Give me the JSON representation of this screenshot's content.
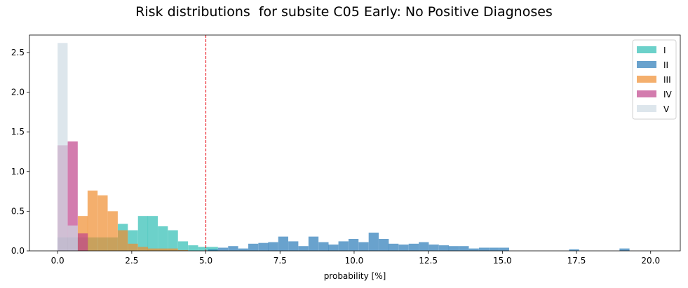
{
  "chart_data": {
    "type": "histogram",
    "title": "Risk distributions  for subsite C05 Early: No Positive Diagnoses",
    "xlabel": "probability [%]",
    "ylabel": "",
    "xlim": [
      -0.95,
      21.0
    ],
    "ylim": [
      0,
      2.72
    ],
    "xticks": [
      "0.0",
      "2.5",
      "5.0",
      "7.5",
      "10.0",
      "12.5",
      "15.0",
      "17.5",
      "20.0"
    ],
    "yticks": [
      "0.0",
      "0.5",
      "1.0",
      "1.5",
      "2.0",
      "2.5"
    ],
    "grid": false,
    "legend_position": "top-right",
    "threshold": {
      "x": 5.0,
      "style": "dashed",
      "color": "#e8000b"
    },
    "bin_width": 0.338,
    "series": [
      {
        "name": "I",
        "color": "#2ebdb4",
        "bins": [
          [
            0.0,
            0.17
          ],
          [
            0.34,
            0.17
          ],
          [
            0.68,
            0.17
          ],
          [
            1.01,
            0.17
          ],
          [
            1.35,
            0.17
          ],
          [
            1.69,
            0.17
          ],
          [
            2.03,
            0.34
          ],
          [
            2.37,
            0.26
          ],
          [
            2.71,
            0.44
          ],
          [
            3.04,
            0.44
          ],
          [
            3.38,
            0.31
          ],
          [
            3.72,
            0.26
          ],
          [
            4.06,
            0.12
          ],
          [
            4.4,
            0.07
          ],
          [
            4.74,
            0.05
          ],
          [
            5.07,
            0.05
          ]
        ]
      },
      {
        "name": "II",
        "color": "#2a7ab8",
        "bins": [
          [
            5.07,
            0.02
          ],
          [
            5.41,
            0.04
          ],
          [
            5.75,
            0.06
          ],
          [
            6.09,
            0.03
          ],
          [
            6.43,
            0.09
          ],
          [
            6.77,
            0.1
          ],
          [
            7.1,
            0.11
          ],
          [
            7.44,
            0.18
          ],
          [
            7.78,
            0.12
          ],
          [
            8.12,
            0.06
          ],
          [
            8.46,
            0.18
          ],
          [
            8.8,
            0.11
          ],
          [
            9.13,
            0.08
          ],
          [
            9.47,
            0.12
          ],
          [
            9.81,
            0.15
          ],
          [
            10.15,
            0.11
          ],
          [
            10.49,
            0.23
          ],
          [
            10.83,
            0.15
          ],
          [
            11.16,
            0.09
          ],
          [
            11.5,
            0.08
          ],
          [
            11.84,
            0.09
          ],
          [
            12.18,
            0.11
          ],
          [
            12.52,
            0.08
          ],
          [
            12.86,
            0.07
          ],
          [
            13.19,
            0.06
          ],
          [
            13.53,
            0.06
          ],
          [
            13.87,
            0.03
          ],
          [
            14.21,
            0.04
          ],
          [
            14.55,
            0.04
          ],
          [
            14.89,
            0.04
          ],
          [
            17.25,
            0.02
          ],
          [
            18.95,
            0.03
          ]
        ]
      },
      {
        "name": "III",
        "color": "#ef8d2f",
        "bins": [
          [
            0.68,
            0.44
          ],
          [
            1.01,
            0.76
          ],
          [
            1.35,
            0.7
          ],
          [
            1.69,
            0.5
          ],
          [
            2.03,
            0.26
          ],
          [
            2.37,
            0.09
          ],
          [
            2.71,
            0.05
          ],
          [
            3.04,
            0.03
          ],
          [
            3.38,
            0.03
          ],
          [
            3.72,
            0.03
          ],
          [
            4.06,
            0.01
          ]
        ]
      },
      {
        "name": "IV",
        "color": "#c1458c",
        "bins": [
          [
            0.0,
            1.33
          ],
          [
            0.34,
            1.38
          ],
          [
            0.68,
            0.22
          ]
        ]
      },
      {
        "name": "V",
        "color": "#cfdbe4",
        "bins": [
          [
            0.0,
            2.62
          ],
          [
            0.34,
            0.32
          ]
        ]
      }
    ]
  }
}
